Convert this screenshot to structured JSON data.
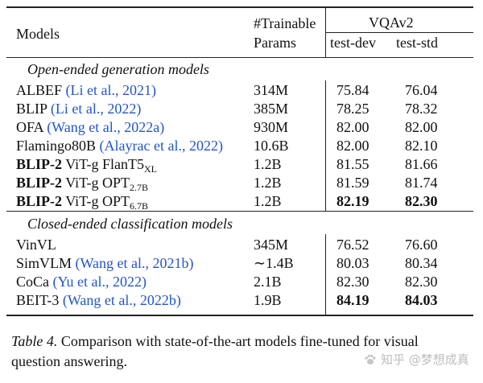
{
  "header": {
    "models": "Models",
    "trainable_line1": "#Trainable",
    "trainable_line2": "Params",
    "vqav2": "VQAv2",
    "test_dev": "test-dev",
    "test_std": "test-std"
  },
  "open_section": {
    "title": "Open-ended generation models",
    "rows": [
      {
        "name": "ALBEF",
        "cite": "(Li et al., 2021)",
        "params": "314M",
        "dev": "75.84",
        "std": "76.04"
      },
      {
        "name": "BLIP",
        "cite": "(Li et al., 2022)",
        "params": "385M",
        "dev": "78.25",
        "std": "78.32"
      },
      {
        "name": "OFA",
        "cite": "(Wang et al., 2022a)",
        "params": "930M",
        "dev": "82.00",
        "std": "82.00"
      },
      {
        "name": "Flamingo80B",
        "cite": "(Alayrac et al., 2022)",
        "params": "10.6B",
        "dev": "82.00",
        "std": "82.10"
      },
      {
        "name": "BLIP-2",
        "variant": "ViT-g FlanT5",
        "sub": "XL",
        "params": "1.2B",
        "dev": "81.55",
        "std": "81.66"
      },
      {
        "name": "BLIP-2",
        "variant": "ViT-g OPT",
        "sub": "2.7B",
        "params": "1.2B",
        "dev": "81.59",
        "std": "81.74"
      },
      {
        "name": "BLIP-2",
        "variant": "ViT-g OPT",
        "sub": "6.7B",
        "params": "1.2B",
        "dev": "82.19",
        "std": "82.30"
      }
    ]
  },
  "closed_section": {
    "title": "Closed-ended classification models",
    "rows": [
      {
        "name": "VinVL",
        "cite": "",
        "params": "345M",
        "dev": "76.52",
        "std": "76.60"
      },
      {
        "name": "SimVLM",
        "cite": "(Wang et al., 2021b)",
        "params": "∼1.4B",
        "dev": "80.03",
        "std": "80.34"
      },
      {
        "name": "CoCa",
        "cite": "(Yu et al., 2022)",
        "params": "2.1B",
        "dev": "82.30",
        "std": "82.30"
      },
      {
        "name": "BEIT-3",
        "cite": "(Wang et al., 2022b)",
        "params": "1.9B",
        "dev": "84.19",
        "std": "84.03"
      }
    ]
  },
  "caption": {
    "label": "Table 4.",
    "text": " Comparison with state-of-the-art models fine-tuned for visual question answering."
  },
  "watermark": {
    "text": "知乎 @梦想成真",
    "icon": "zhihu-paw-icon"
  }
}
